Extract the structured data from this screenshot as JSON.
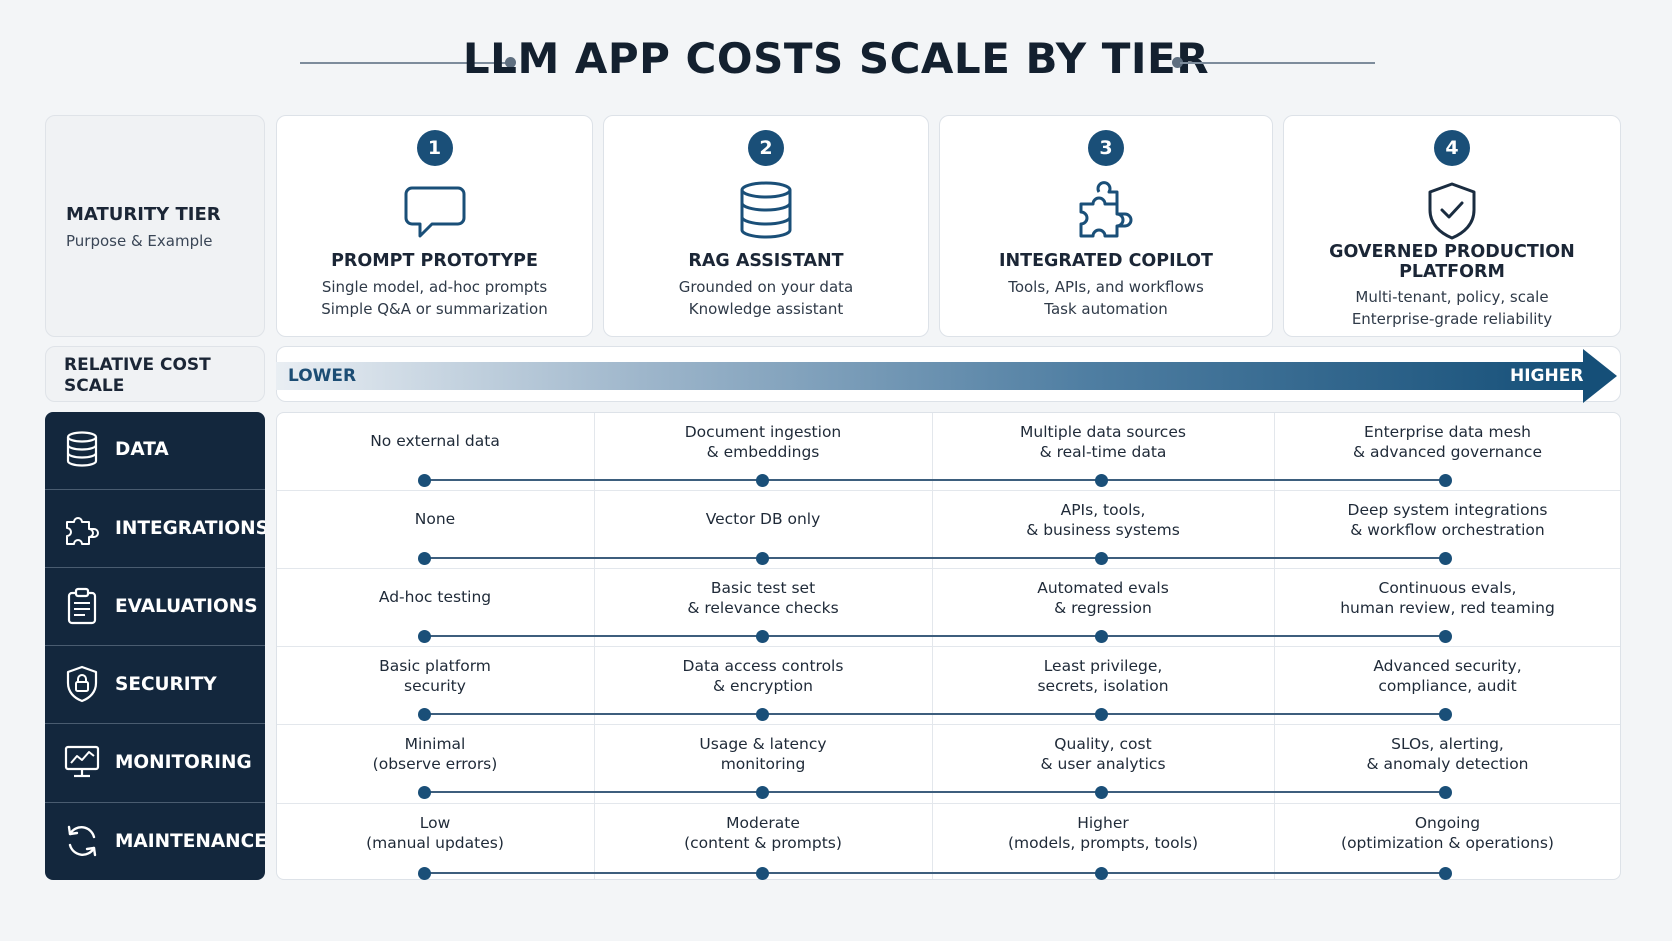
{
  "title": "LLM APP COSTS SCALE BY TIER",
  "maturity_header": {
    "title": "MATURITY TIER",
    "subtitle": "Purpose & Example"
  },
  "tiers": [
    {
      "number": "1",
      "icon": "chat-bubble-icon",
      "name": "PROMPT PROTOTYPE",
      "desc_line1": "Single model, ad-hoc prompts",
      "desc_line2": "Simple Q&A or summarization"
    },
    {
      "number": "2",
      "icon": "database-icon",
      "name": "RAG ASSISTANT",
      "desc_line1": "Grounded on your data",
      "desc_line2": "Knowledge assistant"
    },
    {
      "number": "3",
      "icon": "puzzle-icon",
      "name": "INTEGRATED COPILOT",
      "desc_line1": "Tools, APIs, and workflows",
      "desc_line2": "Task automation"
    },
    {
      "number": "4",
      "icon": "shield-check-icon",
      "name_line1": "GOVERNED PRODUCTION",
      "name_line2": "PLATFORM",
      "desc_line1": "Multi-tenant, policy, scale",
      "desc_line2": "Enterprise-grade reliability"
    }
  ],
  "cost_scale": {
    "label_line1": "RELATIVE COST",
    "label_line2": "SCALE",
    "low": "LOWER",
    "high": "HIGHER"
  },
  "dimensions": [
    {
      "label": "DATA",
      "icon": "database-icon",
      "cells": [
        [
          "No external data"
        ],
        [
          "Document ingestion",
          "& embeddings"
        ],
        [
          "Multiple data sources",
          "& real-time data"
        ],
        [
          "Enterprise data mesh",
          "& advanced governance"
        ]
      ]
    },
    {
      "label": "INTEGRATIONS",
      "icon": "puzzle-icon",
      "cells": [
        [
          "None"
        ],
        [
          "Vector DB only"
        ],
        [
          "APIs, tools,",
          "& business systems"
        ],
        [
          "Deep system integrations",
          "& workflow orchestration"
        ]
      ]
    },
    {
      "label": "EVALUATIONS",
      "icon": "clipboard-icon",
      "cells": [
        [
          "Ad-hoc testing"
        ],
        [
          "Basic test set",
          "& relevance checks"
        ],
        [
          "Automated evals",
          "& regression"
        ],
        [
          "Continuous evals,",
          "human review, red teaming"
        ]
      ]
    },
    {
      "label": "SECURITY",
      "icon": "shield-lock-icon",
      "cells": [
        [
          "Basic platform",
          "security"
        ],
        [
          "Data access controls",
          "& encryption"
        ],
        [
          "Least privilege,",
          "secrets, isolation"
        ],
        [
          "Advanced security,",
          "compliance, audit"
        ]
      ]
    },
    {
      "label": "MONITORING",
      "icon": "monitor-chart-icon",
      "cells": [
        [
          "Minimal",
          "(observe errors)"
        ],
        [
          "Usage & latency",
          "monitoring"
        ],
        [
          "Quality, cost",
          "& user analytics"
        ],
        [
          "SLOs, alerting,",
          "& anomaly detection"
        ]
      ]
    },
    {
      "label": "MAINTENANCE",
      "icon": "refresh-icon",
      "cells": [
        [
          "Low",
          "(manual updates)"
        ],
        [
          "Moderate",
          "(content & prompts)"
        ],
        [
          "Higher",
          "(models, prompts, tools)"
        ],
        [
          "Ongoing",
          "(optimization & operations)"
        ]
      ]
    }
  ],
  "colors": {
    "accent": "#1a4f78",
    "dark_panel": "#13273d",
    "background": "#f3f5f7"
  }
}
